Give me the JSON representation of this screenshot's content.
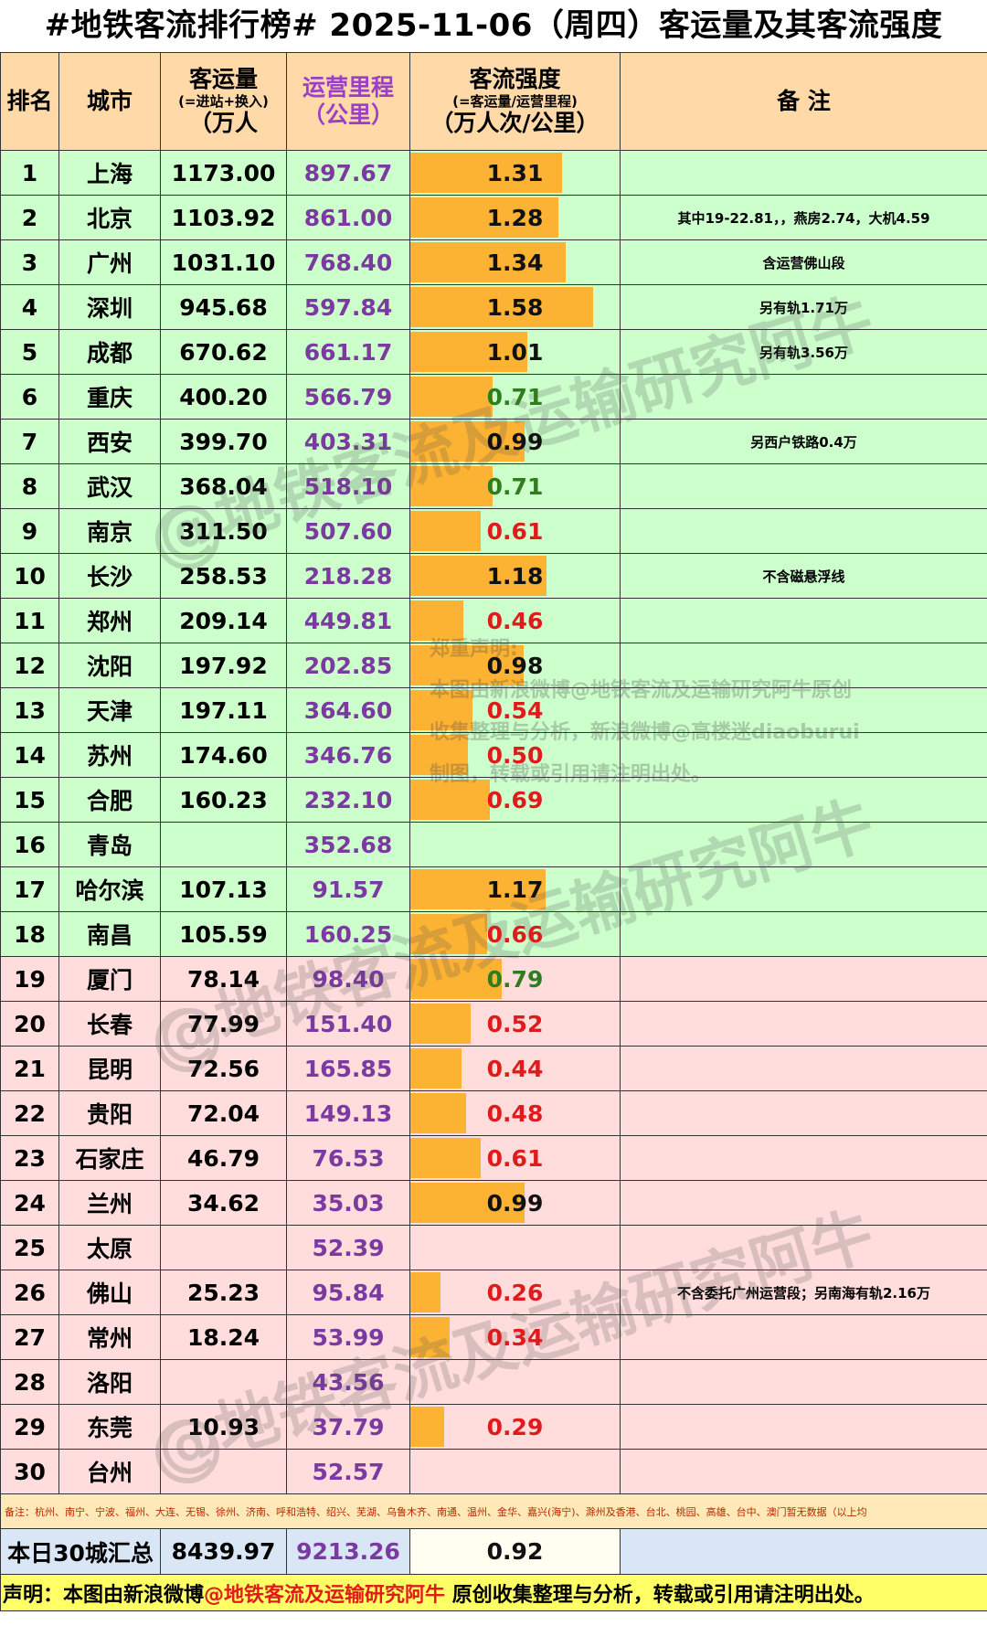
{
  "title": "#地铁客流排行榜# 2025-11-06（周四）客运量及其客流强度",
  "headers": {
    "rank": "排名",
    "city": "城市",
    "ridership_main": "客运量",
    "ridership_sub": "(=进站+换入)",
    "ridership_unit": "（万人",
    "mileage_main": "运营里程",
    "mileage_unit": "（公里）",
    "intensity_main": "客流强度",
    "intensity_sub": "(=客运量/运营里程)",
    "intensity_unit": "（万人次/公里）",
    "note": "备  注"
  },
  "rows": [
    {
      "rank": "1",
      "city": "上海",
      "ridership": "1173.00",
      "mileage": "897.67",
      "intensity": "1.31",
      "note": "",
      "color": "black",
      "group": "green"
    },
    {
      "rank": "2",
      "city": "北京",
      "ridership": "1103.92",
      "mileage": "861.00",
      "intensity": "1.28",
      "note": "其中19-22.81，，燕房2.74，大机4.59",
      "color": "black",
      "group": "green"
    },
    {
      "rank": "3",
      "city": "广州",
      "ridership": "1031.10",
      "mileage": "768.40",
      "intensity": "1.34",
      "note": "含运营佛山段",
      "color": "black",
      "group": "green"
    },
    {
      "rank": "4",
      "city": "深圳",
      "ridership": "945.68",
      "mileage": "597.84",
      "intensity": "1.58",
      "note": "另有轨1.71万",
      "color": "black",
      "group": "green"
    },
    {
      "rank": "5",
      "city": "成都",
      "ridership": "670.62",
      "mileage": "661.17",
      "intensity": "1.01",
      "note": "另有轨3.56万",
      "color": "black",
      "group": "green"
    },
    {
      "rank": "6",
      "city": "重庆",
      "ridership": "400.20",
      "mileage": "566.79",
      "intensity": "0.71",
      "note": "",
      "color": "green",
      "group": "green"
    },
    {
      "rank": "7",
      "city": "西安",
      "ridership": "399.70",
      "mileage": "403.31",
      "intensity": "0.99",
      "note": "另西户铁路0.4万",
      "color": "black",
      "group": "green"
    },
    {
      "rank": "8",
      "city": "武汉",
      "ridership": "368.04",
      "mileage": "518.10",
      "intensity": "0.71",
      "note": "",
      "color": "green",
      "group": "green"
    },
    {
      "rank": "9",
      "city": "南京",
      "ridership": "311.50",
      "mileage": "507.60",
      "intensity": "0.61",
      "note": "",
      "color": "red",
      "group": "green"
    },
    {
      "rank": "10",
      "city": "长沙",
      "ridership": "258.53",
      "mileage": "218.28",
      "intensity": "1.18",
      "note": "不含磁悬浮线",
      "color": "black",
      "group": "green"
    },
    {
      "rank": "11",
      "city": "郑州",
      "ridership": "209.14",
      "mileage": "449.81",
      "intensity": "0.46",
      "note": "",
      "color": "red",
      "group": "green"
    },
    {
      "rank": "12",
      "city": "沈阳",
      "ridership": "197.92",
      "mileage": "202.85",
      "intensity": "0.98",
      "note": "",
      "color": "black",
      "group": "green"
    },
    {
      "rank": "13",
      "city": "天津",
      "ridership": "197.11",
      "mileage": "364.60",
      "intensity": "0.54",
      "note": "",
      "color": "red",
      "group": "green"
    },
    {
      "rank": "14",
      "city": "苏州",
      "ridership": "174.60",
      "mileage": "346.76",
      "intensity": "0.50",
      "note": "",
      "color": "red",
      "group": "green"
    },
    {
      "rank": "15",
      "city": "合肥",
      "ridership": "160.23",
      "mileage": "232.10",
      "intensity": "0.69",
      "note": "",
      "color": "red",
      "group": "green"
    },
    {
      "rank": "16",
      "city": "青岛",
      "ridership": "",
      "mileage": "352.68",
      "intensity": "",
      "note": "",
      "color": "black",
      "group": "green"
    },
    {
      "rank": "17",
      "city": "哈尔滨",
      "ridership": "107.13",
      "mileage": "91.57",
      "intensity": "1.17",
      "note": "",
      "color": "black",
      "group": "green"
    },
    {
      "rank": "18",
      "city": "南昌",
      "ridership": "105.59",
      "mileage": "160.25",
      "intensity": "0.66",
      "note": "",
      "color": "red",
      "group": "green"
    },
    {
      "rank": "19",
      "city": "厦门",
      "ridership": "78.14",
      "mileage": "98.40",
      "intensity": "0.79",
      "note": "",
      "color": "green",
      "group": "pink"
    },
    {
      "rank": "20",
      "city": "长春",
      "ridership": "77.99",
      "mileage": "151.40",
      "intensity": "0.52",
      "note": "",
      "color": "red",
      "group": "pink"
    },
    {
      "rank": "21",
      "city": "昆明",
      "ridership": "72.56",
      "mileage": "165.85",
      "intensity": "0.44",
      "note": "",
      "color": "red",
      "group": "pink"
    },
    {
      "rank": "22",
      "city": "贵阳",
      "ridership": "72.04",
      "mileage": "149.13",
      "intensity": "0.48",
      "note": "",
      "color": "red",
      "group": "pink"
    },
    {
      "rank": "23",
      "city": "石家庄",
      "ridership": "46.79",
      "mileage": "76.53",
      "intensity": "0.61",
      "note": "",
      "color": "red",
      "group": "pink"
    },
    {
      "rank": "24",
      "city": "兰州",
      "ridership": "34.62",
      "mileage": "35.03",
      "intensity": "0.99",
      "note": "",
      "color": "black",
      "group": "pink"
    },
    {
      "rank": "25",
      "city": "太原",
      "ridership": "",
      "mileage": "52.39",
      "intensity": "",
      "note": "",
      "color": "black",
      "group": "pink"
    },
    {
      "rank": "26",
      "city": "佛山",
      "ridership": "25.23",
      "mileage": "95.84",
      "intensity": "0.26",
      "note": "不含委托广州运营段；另南海有轨2.16万",
      "color": "red",
      "group": "pink"
    },
    {
      "rank": "27",
      "city": "常州",
      "ridership": "18.24",
      "mileage": "53.99",
      "intensity": "0.34",
      "note": "",
      "color": "red",
      "group": "pink"
    },
    {
      "rank": "28",
      "city": "洛阳",
      "ridership": "",
      "mileage": "43.56",
      "intensity": "",
      "note": "",
      "color": "black",
      "group": "pink"
    },
    {
      "rank": "29",
      "city": "东莞",
      "ridership": "10.93",
      "mileage": "37.79",
      "intensity": "0.29",
      "note": "",
      "color": "red",
      "group": "pink"
    },
    {
      "rank": "30",
      "city": "台州",
      "ridership": "",
      "mileage": "52.57",
      "intensity": "",
      "note": "",
      "color": "black",
      "group": "pink"
    }
  ],
  "bottom_note": "备注：杭州、南宁、宁波、福州、大连、无锡、徐州、济南、呼和浩特、绍兴、芜湖、乌鲁木齐、南通、温州、金华、嘉兴(海宁)、滁州及香港、台北、桃园、高雄、台中、澳门暂无数据（以上均",
  "total": {
    "label": "本日30城汇总",
    "ridership": "8439.97",
    "mileage": "9213.26",
    "intensity": "0.92"
  },
  "footer": {
    "prefix": "声明：本图由新浪微博",
    "account": "@地铁客流及运输研究阿牛",
    "suffix": " 原创收集整理与分析，转载或引用请注明出处。"
  },
  "watermark": {
    "notice_title": "郑重声明:",
    "notice_line1": "本图由新浪微博@地铁客流及运输研究阿牛原创",
    "notice_line2": "收集整理与分析，新浪微博@高楼迷diaoburui",
    "notice_line3": "制图，转载或引用请注明出处。",
    "stamp_text": "@地铁客流及运输研究阿牛"
  },
  "colors": {
    "header_bg": "#ffd9a8",
    "green_row": "#ccffcc",
    "pink_row": "#ffdddd",
    "bar": "#fcb232",
    "value_black": "#111111",
    "value_green": "#2e7d1e",
    "value_red": "#e01b1b",
    "mileage_text": "#7a3aa0"
  },
  "chart_data": {
    "type": "bar",
    "title": "#地铁客流排行榜# 2025-11-06（周四）客运量及其客流强度",
    "ylabel": "客流强度（万人次/公里）",
    "categories": [
      "上海",
      "北京",
      "广州",
      "深圳",
      "成都",
      "重庆",
      "西安",
      "武汉",
      "南京",
      "长沙",
      "郑州",
      "沈阳",
      "天津",
      "苏州",
      "合肥",
      "青岛",
      "哈尔滨",
      "南昌",
      "厦门",
      "长春",
      "昆明",
      "贵阳",
      "石家庄",
      "兰州",
      "太原",
      "佛山",
      "常州",
      "洛阳",
      "东莞",
      "台州"
    ],
    "values": [
      1.31,
      1.28,
      1.34,
      1.58,
      1.01,
      0.71,
      0.99,
      0.71,
      0.61,
      1.18,
      0.46,
      0.98,
      0.54,
      0.5,
      0.69,
      null,
      1.17,
      0.66,
      0.79,
      0.52,
      0.44,
      0.48,
      0.61,
      0.99,
      null,
      0.26,
      0.34,
      null,
      0.29,
      null
    ],
    "ylim": [
      0,
      1.58
    ]
  }
}
